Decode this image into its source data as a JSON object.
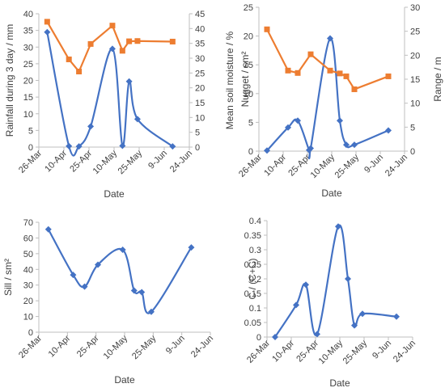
{
  "colors": {
    "blue": "#4472c4",
    "orange": "#ed7d31",
    "axis": "#bfbfbf",
    "text": "#404040"
  },
  "chart_data": [
    {
      "type": "line",
      "xlabel": "Date",
      "ylabel": "Rainfall during 3 day / mm",
      "y2label": "Mean soil moisture / %",
      "x_ticks": [
        "26-Mar",
        "10-Apr",
        "25-Apr",
        "10-May",
        "25-May",
        "9-Jun",
        "24-Jun"
      ],
      "ylim": [
        0,
        40
      ],
      "y_ticks": [
        0,
        5,
        10,
        15,
        20,
        25,
        30,
        35,
        40
      ],
      "y2lim": [
        0,
        45
      ],
      "y2_ticks": [
        0,
        5,
        10,
        15,
        20,
        25,
        30,
        35,
        40,
        45
      ],
      "grid": false,
      "series": [
        {
          "axis": "left",
          "color": "blue",
          "marker": "diamond",
          "x": [
            "2014-03-31",
            "2014-04-13",
            "2014-04-19",
            "2014-04-26",
            "2014-05-09",
            "2014-05-15",
            "2014-05-19",
            "2014-05-24",
            "2014-06-14"
          ],
          "values": [
            34.5,
            0.3,
            0.2,
            6.2,
            29.5,
            0.4,
            19.7,
            8.4,
            0.2
          ]
        },
        {
          "axis": "right",
          "color": "orange",
          "marker": "square",
          "x": [
            "2014-03-31",
            "2014-04-13",
            "2014-04-19",
            "2014-04-26",
            "2014-05-09",
            "2014-05-15",
            "2014-05-19",
            "2014-05-24",
            "2014-06-14"
          ],
          "values": [
            42.3,
            29.6,
            25.5,
            34.8,
            41.0,
            32.5,
            35.7,
            35.8,
            35.6
          ]
        }
      ]
    },
    {
      "type": "line",
      "xlabel": "Date",
      "ylabel": "Nugget / sm²",
      "y2label": "Range / m",
      "x_ticks": [
        "26-Mar",
        "10-Apr",
        "25-Apr",
        "10-May",
        "25-May",
        "9-Jun",
        "24-Jun"
      ],
      "ylim": [
        0,
        25
      ],
      "y_ticks": [
        0,
        5,
        10,
        15,
        20,
        25
      ],
      "y2lim": [
        0,
        30
      ],
      "y2_ticks": [
        0,
        5,
        10,
        15,
        20,
        25,
        30
      ],
      "grid": false,
      "series": [
        {
          "axis": "left",
          "color": "blue",
          "marker": "diamond",
          "x": [
            "2014-03-31",
            "2014-04-13",
            "2014-04-19",
            "2014-04-26",
            "2014-04-27",
            "2014-05-09",
            "2014-05-15",
            "2014-05-19",
            "2014-05-24",
            "2014-06-14"
          ],
          "values": [
            0.1,
            4.1,
            5.3,
            0.2,
            0.5,
            19.6,
            5.3,
            1.1,
            1.1,
            3.6
          ]
        },
        {
          "axis": "right",
          "color": "orange",
          "marker": "square",
          "x": [
            "2014-03-31",
            "2014-04-13",
            "2014-04-19",
            "2014-04-27",
            "2014-05-09",
            "2014-05-15",
            "2014-05-19",
            "2014-05-24",
            "2014-06-14"
          ],
          "values": [
            25.4,
            16.8,
            16.3,
            20.2,
            16.8,
            16.2,
            15.6,
            12.9,
            15.6
          ]
        }
      ]
    },
    {
      "type": "line",
      "xlabel": "Date",
      "ylabel": "Sill / sm²",
      "x_ticks": [
        "26-Mar",
        "10-Apr",
        "25-Apr",
        "10-May",
        "25-May",
        "9-Jun",
        "24-Jun"
      ],
      "ylim": [
        0,
        70
      ],
      "y_ticks": [
        0,
        10,
        20,
        30,
        40,
        50,
        60,
        70
      ],
      "grid": false,
      "series": [
        {
          "axis": "left",
          "color": "blue",
          "marker": "diamond",
          "x": [
            "2014-03-31",
            "2014-04-13",
            "2014-04-19",
            "2014-04-26",
            "2014-05-09",
            "2014-05-15",
            "2014-05-19",
            "2014-05-24",
            "2014-06-14"
          ],
          "values": [
            65.5,
            36.5,
            29.0,
            43.0,
            52.5,
            26.5,
            25.5,
            13.0,
            54.0
          ]
        }
      ]
    },
    {
      "type": "line",
      "xlabel": "Date",
      "ylabel": "C / (C+C)",
      "x_ticks": [
        "26-Mar",
        "10-Apr",
        "25-Apr",
        "10-May",
        "25-May",
        "9-Jun",
        "24-Jun"
      ],
      "ylim": [
        0,
        0.4
      ],
      "y_ticks": [
        0,
        0.05,
        0.1,
        0.15,
        0.2,
        0.25,
        0.3,
        0.35,
        0.4
      ],
      "grid": false,
      "series": [
        {
          "axis": "left",
          "color": "blue",
          "marker": "diamond",
          "x": [
            "2014-03-31",
            "2014-04-13",
            "2014-04-19",
            "2014-04-26",
            "2014-05-09",
            "2014-05-15",
            "2014-05-19",
            "2014-05-24",
            "2014-06-14"
          ],
          "values": [
            0.0,
            0.11,
            0.18,
            0.01,
            0.38,
            0.2,
            0.04,
            0.08,
            0.07
          ]
        }
      ]
    }
  ]
}
